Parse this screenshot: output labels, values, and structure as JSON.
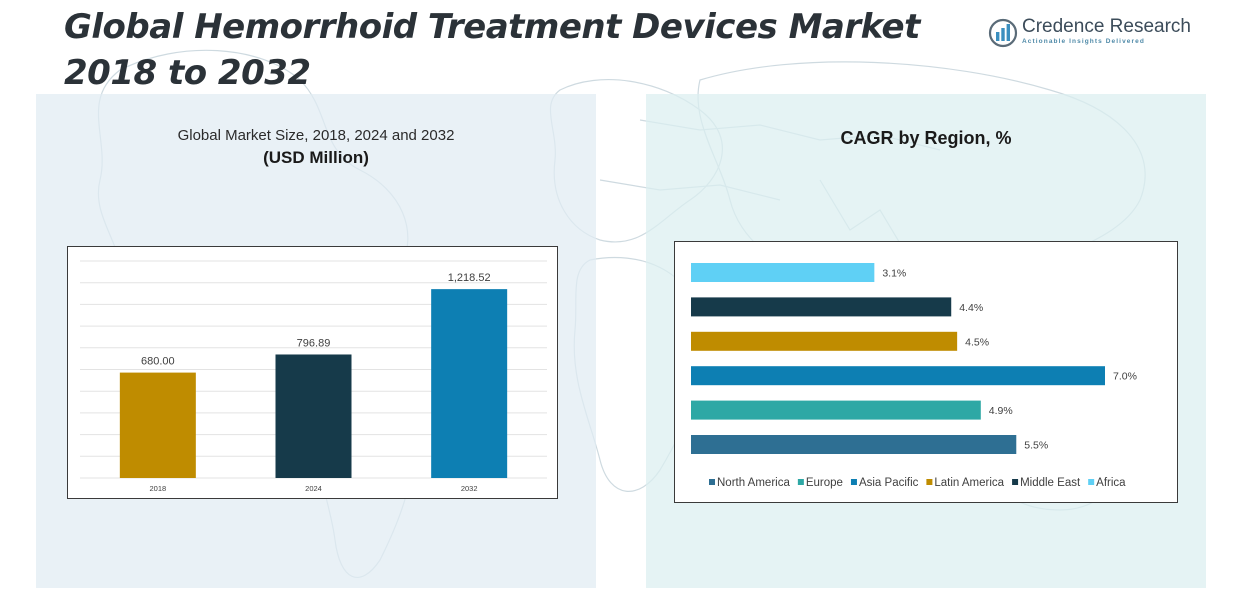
{
  "header": {
    "title": "Global Hemorrhoid Treatment Devices Market 2018 to 2032"
  },
  "logo": {
    "name": "Credence Research",
    "tagline": "Actionable Insights Delivered",
    "icon": "bar-chart-logo-icon"
  },
  "colors": {
    "gold": "#bf8c00",
    "navy": "#163a4a",
    "blue": "#0d7fb3",
    "teal": "#2ea8a5",
    "steel": "#2e6f93",
    "light_blue": "#5fd0f5"
  },
  "chart_data": [
    {
      "type": "bar",
      "title": "Global Market Size, 2018, 2024 and 2032",
      "subtitle": "(USD Million)",
      "categories": [
        "2018",
        "2024",
        "2032"
      ],
      "values": [
        680.0,
        796.89,
        1218.52
      ],
      "value_labels": [
        "680.00",
        "796.89",
        "1,218.52"
      ],
      "bar_colors": [
        "#bf8c00",
        "#163a4a",
        "#0d7fb3"
      ],
      "ylim": [
        0,
        1400
      ],
      "grid": true
    },
    {
      "type": "bar",
      "orientation": "horizontal",
      "title": "CAGR by Region, %",
      "categories": [
        "North America",
        "Europe",
        "Asia Pacific",
        "Latin America",
        "Middle East",
        "Africa"
      ],
      "values": [
        5.5,
        4.9,
        7.0,
        4.5,
        4.4,
        3.1
      ],
      "value_labels": [
        "5.5%",
        "4.9%",
        "7.0%",
        "4.5%",
        "4.4%",
        "3.1%"
      ],
      "bar_colors": [
        "#2e6f93",
        "#2ea8a5",
        "#0d7fb3",
        "#bf8c00",
        "#163a4a",
        "#5fd0f5"
      ],
      "xlim": [
        0,
        7.0
      ],
      "legend": "bottom",
      "grid": false
    }
  ]
}
